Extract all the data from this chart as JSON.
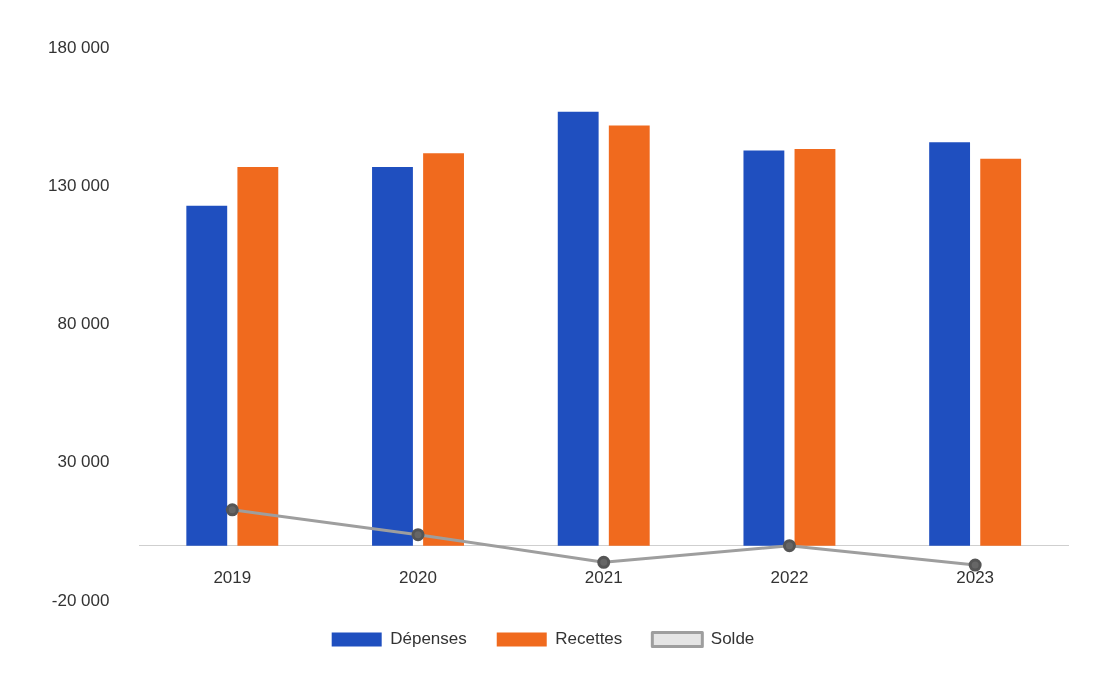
{
  "chart_data": {
    "type": "bar",
    "categories": [
      "2019",
      "2020",
      "2021",
      "2022",
      "2023"
    ],
    "series": [
      {
        "name": "Dépenses",
        "color": "#1f4fbf",
        "values": [
          123000,
          137000,
          157000,
          143000,
          146000
        ]
      },
      {
        "name": "Recettes",
        "color": "#f06a1e",
        "values": [
          137000,
          142000,
          152000,
          143500,
          140000
        ]
      },
      {
        "name": "Solde",
        "type": "line",
        "color": "#9e9e9e",
        "values": [
          13000,
          4000,
          -6000,
          0,
          -7000
        ]
      }
    ],
    "ylim": [
      -20000,
      180000
    ],
    "yticks": [
      {
        "value": -20000,
        "label": "-20 000"
      },
      {
        "value": 30000,
        "label": "30 000"
      },
      {
        "value": 80000,
        "label": "80 000"
      },
      {
        "value": 130000,
        "label": "130 000"
      },
      {
        "value": 180000,
        "label": "180 000"
      }
    ],
    "grid": false,
    "legend": "bottom",
    "marker": "circle",
    "line_style": "solid"
  }
}
